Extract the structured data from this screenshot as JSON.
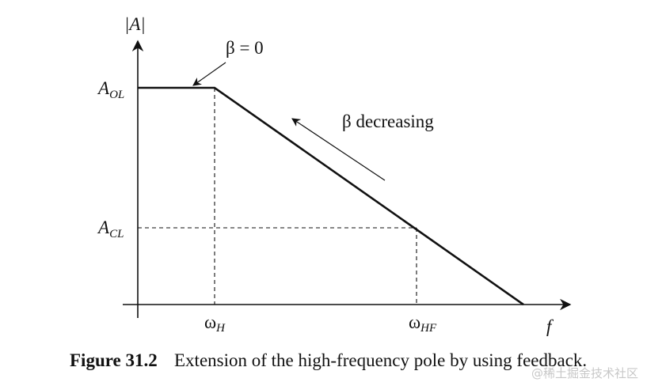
{
  "axes": {
    "y_label": "|A|",
    "x_label": "f"
  },
  "levels": [
    {
      "symbol": "A",
      "subscript": "OL"
    },
    {
      "symbol": "A",
      "subscript": "CL"
    }
  ],
  "frequencies": [
    {
      "symbol": "ω",
      "subscript": "H"
    },
    {
      "symbol": "ω",
      "subscript": "HF"
    }
  ],
  "annotations": [
    "β = 0",
    "β decreasing"
  ],
  "caption": {
    "number": "Figure 31.2",
    "text": "Extension of the high-frequency pole by using feedback."
  },
  "watermark": "@稀土掘金技术社区"
}
